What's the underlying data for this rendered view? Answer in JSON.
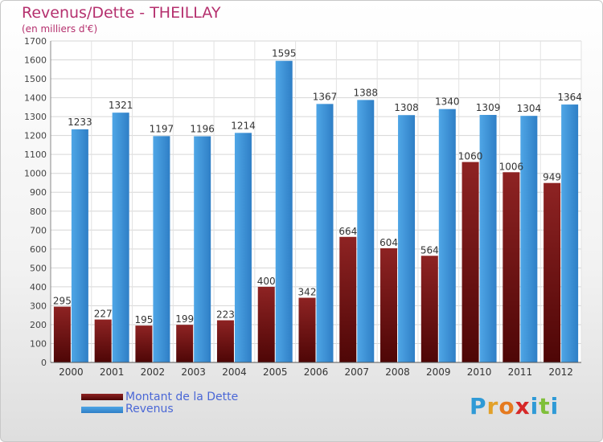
{
  "header": {
    "title": "Revenus/Dette - THEILLAY",
    "subtitle": "(en milliers d'€)"
  },
  "legend": {
    "debt_label": "Montant de la Dette",
    "revenue_label": "Revenus"
  },
  "logo": {
    "letters": [
      "P",
      "r",
      "o",
      "x",
      "i",
      "t",
      "i"
    ],
    "colors": [
      "#2f9ad6",
      "#e2a12a",
      "#e57a1f",
      "#d62828",
      "#2f9ad6",
      "#7fbf3a",
      "#2f9ad6"
    ]
  },
  "colors": {
    "debt": "#7a1010",
    "revenue": "#3a8fd6",
    "title": "#b5306e",
    "legend_text": "#4a67d6"
  },
  "chart_data": {
    "type": "bar",
    "title": "Revenus/Dette - THEILLAY",
    "subtitle": "(en milliers d'€)",
    "categories": [
      "2000",
      "2001",
      "2002",
      "2003",
      "2004",
      "2005",
      "2006",
      "2007",
      "2008",
      "2009",
      "2010",
      "2011",
      "2012"
    ],
    "series": [
      {
        "name": "Montant de la Dette",
        "values": [
          295,
          227,
          195,
          199,
          223,
          400,
          342,
          664,
          604,
          564,
          1060,
          1006,
          949
        ],
        "labels": [
          "295",
          "227",
          "195",
          "199",
          "223",
          "400",
          "342",
          "664",
          "604",
          "564",
          "1060",
          "1006",
          "949"
        ]
      },
      {
        "name": "Revenus",
        "values": [
          1233,
          1321,
          1197,
          1196,
          1214,
          1595,
          1367,
          1388,
          1308,
          1340,
          1309,
          1304,
          1364
        ],
        "labels": [
          "1233",
          "1321",
          "1197",
          "1196",
          "1214",
          "1595",
          "1367",
          "1388",
          "1308",
          "1340",
          "1309",
          "1304",
          "1364"
        ]
      }
    ],
    "ylim": [
      0,
      1700
    ],
    "yticks": [
      0,
      100,
      200,
      300,
      400,
      500,
      600,
      700,
      800,
      900,
      1000,
      1100,
      1200,
      1300,
      1400,
      1500,
      1600,
      1700
    ],
    "grid": true,
    "legend_position": "bottom-left"
  }
}
